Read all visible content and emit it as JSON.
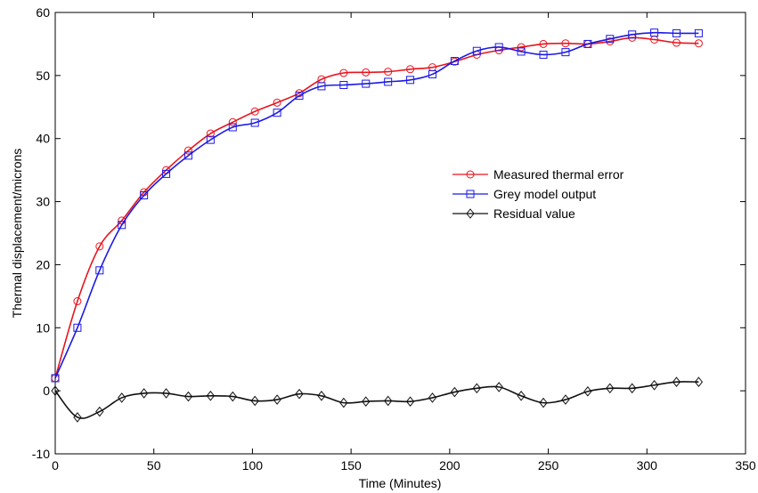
{
  "chart_data": {
    "type": "line",
    "title": "",
    "xlabel": "Time (Minutes)",
    "ylabel": "Thermal displacement/microns",
    "xlim": [
      0,
      350
    ],
    "ylim": [
      -10,
      60
    ],
    "xticks": [
      0,
      50,
      100,
      150,
      200,
      250,
      300,
      350
    ],
    "yticks": [
      -10,
      0,
      10,
      20,
      30,
      40,
      50,
      60
    ],
    "xtick_labels": [
      "0",
      "50",
      "100",
      "150",
      "200",
      "250",
      "300",
      "350"
    ],
    "ytick_labels": [
      "-10",
      "0",
      "10",
      "20",
      "30",
      "40",
      "50",
      "60"
    ],
    "grid": false,
    "legend_position": "right-center",
    "x": [
      0,
      11.25,
      22.5,
      33.75,
      45,
      56.25,
      67.5,
      78.75,
      90,
      101.25,
      112.5,
      123.75,
      135,
      146.25,
      157.5,
      168.75,
      180,
      191.25,
      202.5,
      213.75,
      225,
      236.25,
      247.5,
      258.75,
      270,
      281.25,
      292.5,
      303.75,
      315,
      326.25
    ],
    "series": [
      {
        "name": "Measured thermal error",
        "color": "#e8141e",
        "marker": "circle",
        "values": [
          2.0,
          14.2,
          22.9,
          27.0,
          31.5,
          35.0,
          38.1,
          40.8,
          42.6,
          44.3,
          45.7,
          47.2,
          49.4,
          50.4,
          50.5,
          50.6,
          51.0,
          51.3,
          52.2,
          53.3,
          54.0,
          54.5,
          55.0,
          55.1,
          55.0,
          55.4,
          56.0,
          55.7,
          55.2,
          55.1
        ]
      },
      {
        "name": "Grey model output",
        "color": "#1a1ae6",
        "marker": "square",
        "values": [
          2.0,
          10.0,
          19.1,
          26.3,
          31.0,
          34.4,
          37.3,
          39.8,
          41.8,
          42.5,
          44.1,
          46.8,
          48.3,
          48.5,
          48.7,
          49.0,
          49.3,
          50.2,
          52.3,
          53.9,
          54.5,
          53.8,
          53.3,
          53.7,
          55.0,
          55.8,
          56.5,
          56.8,
          56.7,
          56.7
        ]
      },
      {
        "name": "Residual value",
        "color": "#111111",
        "marker": "diamond",
        "values": [
          0.0,
          -4.2,
          -3.3,
          -1.1,
          -0.4,
          -0.4,
          -0.9,
          -0.8,
          -0.9,
          -1.6,
          -1.4,
          -0.5,
          -0.8,
          -1.9,
          -1.7,
          -1.6,
          -1.7,
          -1.1,
          -0.2,
          0.4,
          0.6,
          -0.8,
          -1.9,
          -1.4,
          -0.1,
          0.4,
          0.4,
          0.9,
          1.4,
          1.4
        ]
      }
    ]
  }
}
